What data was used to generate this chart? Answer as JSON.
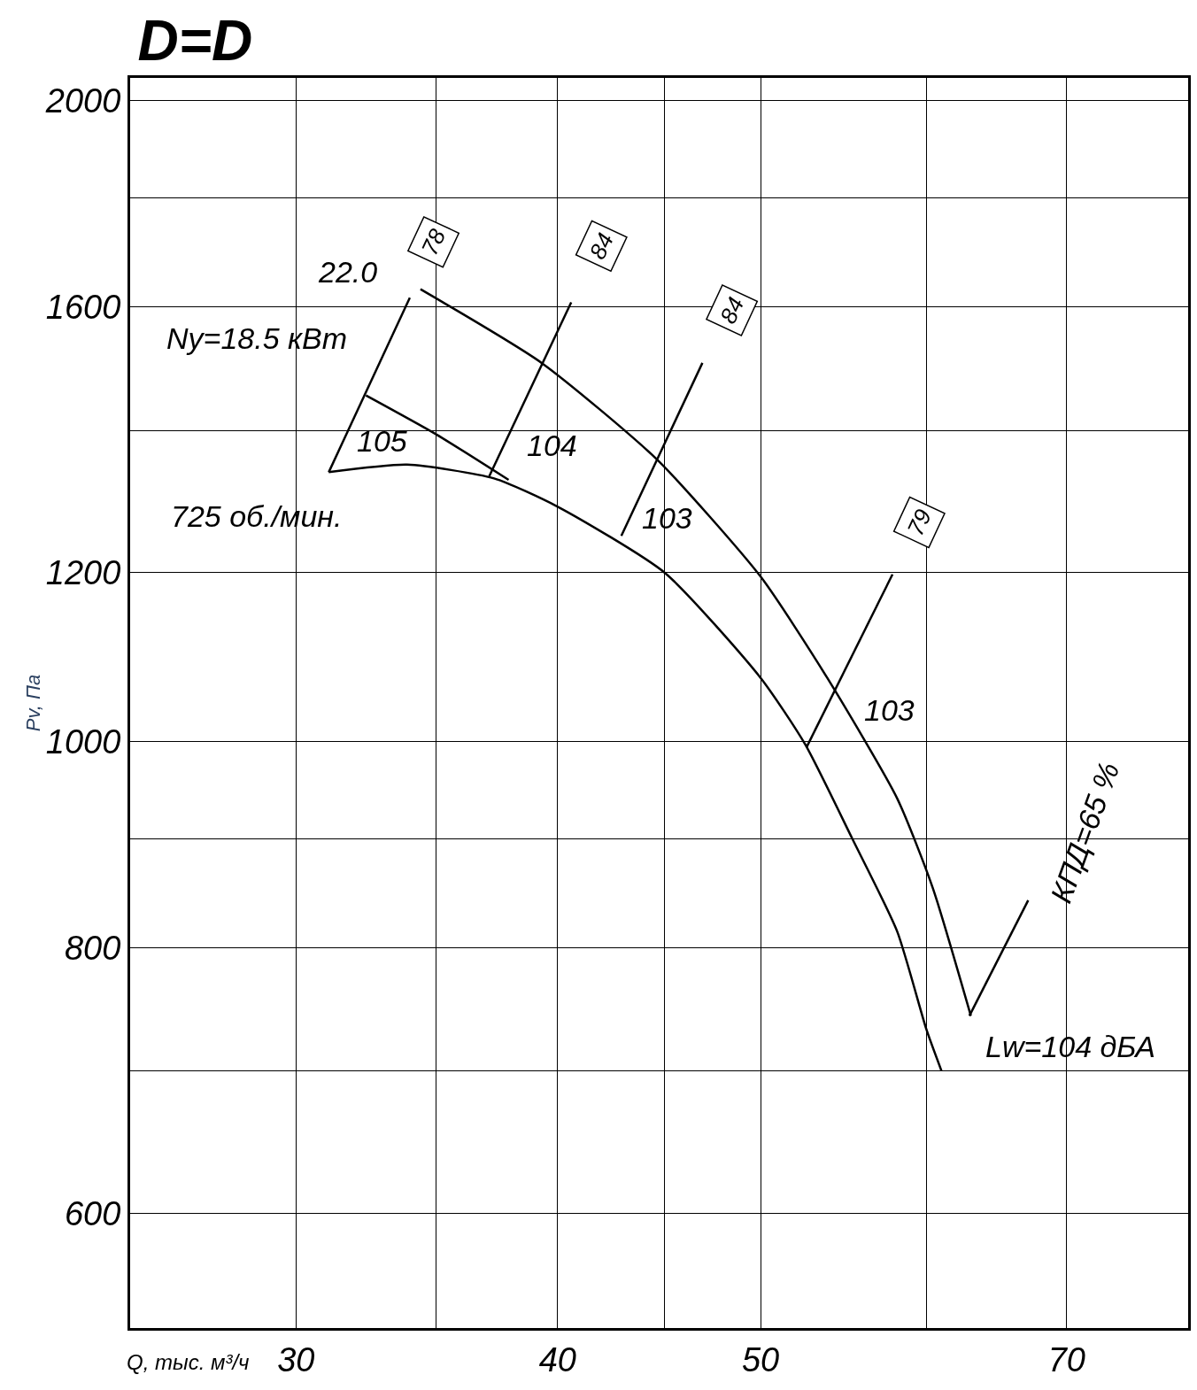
{
  "chart_data": {
    "type": "line",
    "title": "D=D",
    "xlabel": "Q, тыс. м³/ч",
    "ylabel": "Pv, Па",
    "log": "xy",
    "grid": true,
    "marker": "none",
    "line_style": "solid",
    "xlim": [
      25,
      80
    ],
    "ylim": [
      530,
      2050
    ],
    "xticks": [
      30,
      {
        "value": 35,
        "label": null
      },
      40,
      {
        "value": 45,
        "label": null
      },
      50,
      {
        "value": 60,
        "label": null
      },
      70
    ],
    "yticks": [
      600,
      {
        "value": 700,
        "label": null
      },
      800,
      {
        "value": 900,
        "label": null
      },
      1000,
      1200,
      {
        "value": 1400,
        "label": null
      },
      1600,
      {
        "value": 1800,
        "label": null
      },
      2000
    ],
    "series": [
      {
        "color": "#000000",
        "x": [
          34.4,
          39.3,
          44.6,
          50,
          53.8,
          58.1,
          60.4,
          63.0
        ],
        "values": [
          1631,
          1506,
          1357,
          1195,
          1071,
          940,
          854,
          743
        ]
      },
      {
        "color": "#000000",
        "x": [
          31.1,
          33.9,
          37.3,
          40,
          45,
          50,
          52.5,
          55.3,
          58.1,
          60,
          61.0
        ],
        "values": [
          1338,
          1349,
          1329,
          1289,
          1200,
          1071,
          997,
          900,
          814,
          732,
          700
        ]
      },
      {
        "color": "#000000",
        "x": [
          32.4,
          35,
          37.9
        ],
        "values": [
          1454,
          1394,
          1327
        ]
      },
      {
        "color": "#000000",
        "x": [
          31.1,
          34.0
        ],
        "values": [
          1338,
          1616
        ]
      },
      {
        "color": "#000000",
        "x": [
          37.1,
          40.6
        ],
        "values": [
          1332,
          1608
        ]
      },
      {
        "color": "#000000",
        "x": [
          42.9,
          46.9
        ],
        "values": [
          1249,
          1506
        ]
      },
      {
        "color": "#000000",
        "x": [
          52.6,
          57.8
        ],
        "values": [
          994,
          1198
        ]
      },
      {
        "color": "#000000",
        "x": [
          62.9,
          67.1
        ],
        "values": [
          743,
          842
        ]
      }
    ],
    "annotations": [
      "22.0",
      "78",
      "Ny=18.5 кВт",
      "105",
      "104",
      "84",
      "84",
      "103",
      "79",
      "103",
      "725 об./мин.",
      "Lw=104 дБА",
      "КПД=65 %"
    ]
  }
}
